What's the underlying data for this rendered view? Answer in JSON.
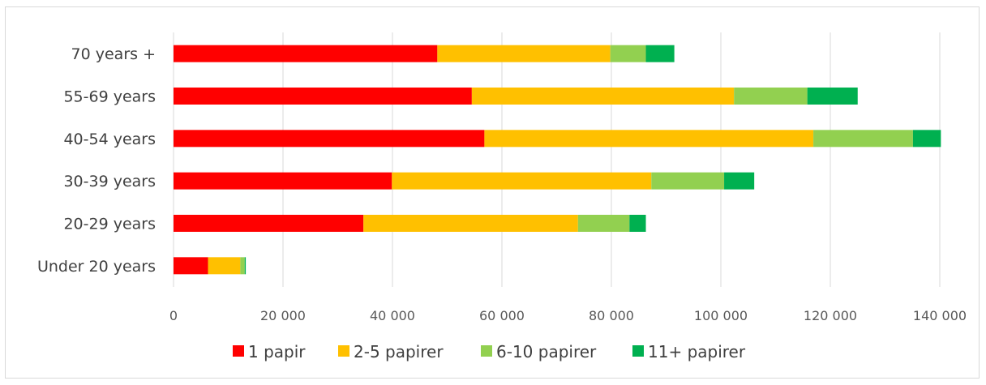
{
  "chart_data": {
    "type": "bar",
    "orientation": "horizontal",
    "stacked": true,
    "title": "",
    "xlabel": "",
    "ylabel": "",
    "categories": [
      "Under 20 years",
      "20-29 years",
      "30-39 years",
      "40-54 years",
      "55-69 years",
      "70 years +"
    ],
    "series": [
      {
        "name": "1 papir",
        "color": "#ff0000",
        "values": [
          6300,
          34700,
          39900,
          56800,
          54500,
          48200
        ]
      },
      {
        "name": "2-5 papirer",
        "color": "#ffc000",
        "values": [
          5900,
          39200,
          47400,
          60100,
          47900,
          31600
        ]
      },
      {
        "name": "6-10 papirer",
        "color": "#92d050",
        "values": [
          800,
          9400,
          13300,
          18200,
          13400,
          6500
        ]
      },
      {
        "name": "11+ papirer",
        "color": "#00b050",
        "values": [
          200,
          3000,
          5500,
          5100,
          9200,
          5200
        ]
      }
    ],
    "xlim": [
      0,
      140000
    ],
    "x_ticks": [
      "0",
      "20 000",
      "40 000",
      "60 000",
      "80 000",
      "100 000",
      "120 000",
      "140 000"
    ],
    "x_tick_values": [
      0,
      20000,
      40000,
      60000,
      80000,
      100000,
      120000,
      140000
    ],
    "grid": "vertical",
    "legend_position": "bottom"
  }
}
